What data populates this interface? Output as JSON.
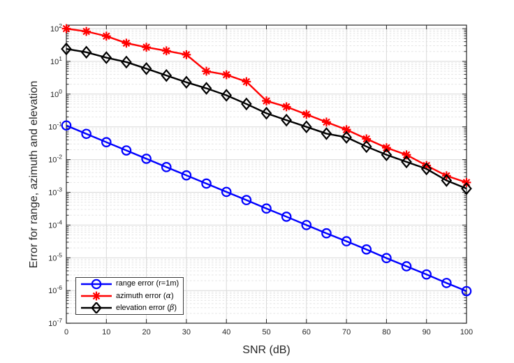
{
  "chart_data": {
    "type": "line",
    "title": "",
    "x_label": "SNR (dB)",
    "y_label": "Error for range, azimuth and elevation",
    "x_scale": "linear",
    "y_scale": "log",
    "xlim": [
      0,
      100
    ],
    "ylim": [
      1e-07,
      130
    ],
    "x_ticks": [
      0,
      10,
      20,
      30,
      40,
      50,
      60,
      70,
      80,
      90,
      100
    ],
    "y_tick_exponents": [
      2,
      1,
      0,
      -1,
      -2,
      -3,
      -4,
      -5,
      -6,
      -7
    ],
    "grid": {
      "major": true,
      "y_minor": true,
      "x_minor": false
    },
    "legend_position": "south-west",
    "axes_color": "#262626",
    "major_grid_color": "#d9d9d9",
    "minor_grid_color": "#e4e4e4",
    "x": [
      0,
      5,
      10,
      15,
      20,
      25,
      30,
      35,
      40,
      45,
      50,
      55,
      60,
      65,
      70,
      75,
      80,
      85,
      90,
      95,
      100
    ],
    "series": [
      {
        "name": "range-error",
        "label": "range error (r=1m)",
        "color": "#0000ff",
        "marker": "circle",
        "values": [
          0.11,
          0.061,
          0.034,
          0.019,
          0.0106,
          0.0059,
          0.0033,
          0.00185,
          0.00103,
          0.00058,
          0.00032,
          0.00018,
          0.0001,
          5.6e-05,
          3.2e-05,
          1.8e-05,
          9.8e-06,
          5.5e-06,
          3.1e-06,
          1.7e-06,
          9.6e-07
        ]
      },
      {
        "name": "azimuth-error",
        "label": "azimuth error (α)",
        "color": "#ff0000",
        "marker": "asterisk",
        "values": [
          100,
          82,
          59,
          36,
          27,
          21,
          16,
          5,
          3.9,
          2.4,
          0.62,
          0.41,
          0.24,
          0.14,
          0.082,
          0.043,
          0.023,
          0.014,
          0.0066,
          0.0032,
          0.002
        ]
      },
      {
        "name": "elevation-error",
        "label": "elevation error (β)",
        "color": "#000000",
        "marker": "diamond",
        "values": [
          24,
          19,
          13,
          9.5,
          6,
          3.7,
          2.3,
          1.5,
          0.92,
          0.5,
          0.26,
          0.16,
          0.1,
          0.062,
          0.048,
          0.025,
          0.014,
          0.0085,
          0.0052,
          0.0023,
          0.0013
        ]
      }
    ]
  }
}
